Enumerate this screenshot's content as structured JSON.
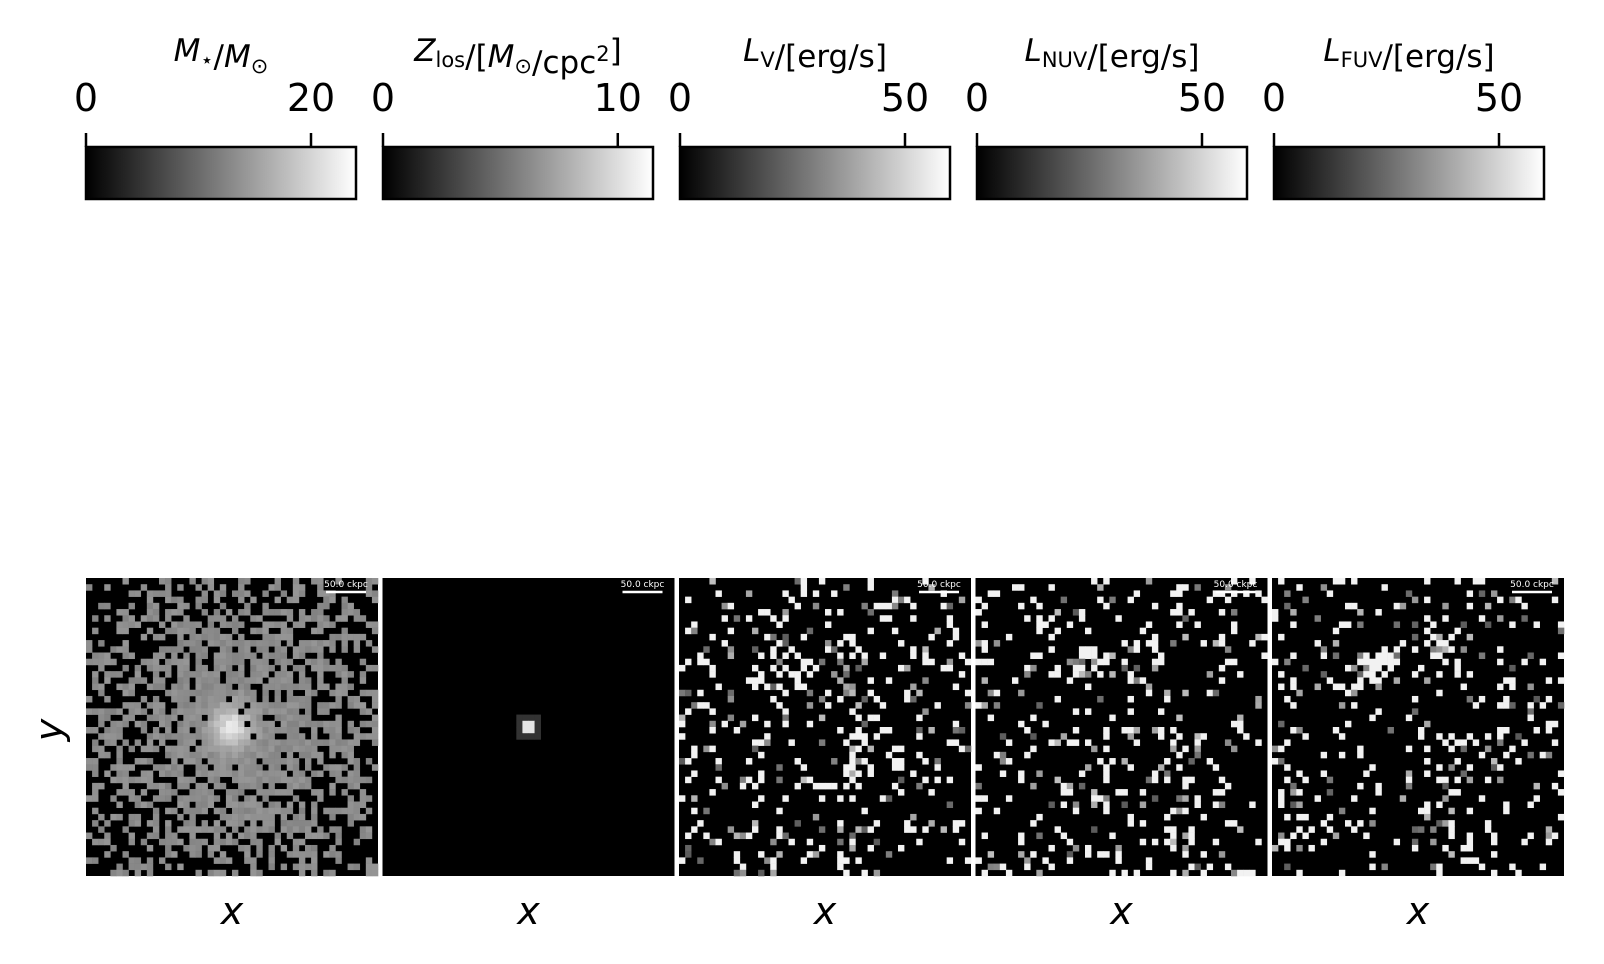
{
  "colors": {
    "cmap_low": "#000000",
    "cmap_high": "#ffffff",
    "frame": "#000000",
    "scalebar": "#ffffff"
  },
  "chart_data": [
    {
      "type": "heatmap",
      "title_parts": [
        [
          "M",
          "it"
        ],
        [
          "⋆",
          "sub"
        ],
        [
          "/",
          ""
        ],
        [
          "M",
          "it"
        ],
        [
          "⊙",
          "sub"
        ]
      ],
      "colorbar": {
        "range": [
          0,
          24
        ],
        "ticks": [
          0,
          20
        ],
        "tick_labels": [
          "0",
          "20"
        ],
        "orientation": "horizontal",
        "position": "top"
      },
      "xlabel": "x",
      "ylabel": "y",
      "scalebar_label": "50.0 ckpc",
      "grid": false,
      "pattern": "central-concentration"
    },
    {
      "type": "heatmap",
      "title_parts": [
        [
          "Z",
          "it"
        ],
        [
          "los",
          "sub"
        ],
        [
          "/[",
          ""
        ],
        [
          "M",
          "it"
        ],
        [
          "⊙",
          "sub"
        ],
        [
          "/cpc",
          ""
        ],
        [
          "2",
          "sup"
        ],
        [
          "]",
          ""
        ]
      ],
      "colorbar": {
        "range": [
          0,
          11.5
        ],
        "ticks": [
          0,
          10
        ],
        "tick_labels": [
          "0",
          "10"
        ],
        "orientation": "horizontal",
        "position": "top"
      },
      "xlabel": "x",
      "ylabel": "",
      "scalebar_label": "50.0 ckpc",
      "grid": false,
      "pattern": "single-bright-pixel"
    },
    {
      "type": "heatmap",
      "title_parts": [
        [
          "L",
          "it"
        ],
        [
          "V",
          "sub"
        ],
        [
          "/[erg/s]",
          ""
        ]
      ],
      "colorbar": {
        "range": [
          0,
          60
        ],
        "ticks": [
          0,
          50
        ],
        "tick_labels": [
          "0",
          "50"
        ],
        "orientation": "horizontal",
        "position": "top"
      },
      "xlabel": "x",
      "ylabel": "",
      "scalebar_label": "50.0 ckpc",
      "grid": false,
      "pattern": "sparse-clumps"
    },
    {
      "type": "heatmap",
      "title_parts": [
        [
          "L",
          "it"
        ],
        [
          "NUV",
          "sub"
        ],
        [
          "/[erg/s]",
          ""
        ]
      ],
      "colorbar": {
        "range": [
          0,
          60
        ],
        "ticks": [
          0,
          50
        ],
        "tick_labels": [
          "0",
          "50"
        ],
        "orientation": "horizontal",
        "position": "top"
      },
      "xlabel": "x",
      "ylabel": "",
      "scalebar_label": "50.0 ckpc",
      "grid": false,
      "pattern": "sparse-clumps"
    },
    {
      "type": "heatmap",
      "title_parts": [
        [
          "L",
          "it"
        ],
        [
          "FUV",
          "sub"
        ],
        [
          "/[erg/s]",
          ""
        ]
      ],
      "colorbar": {
        "range": [
          0,
          60
        ],
        "ticks": [
          0,
          50
        ],
        "tick_labels": [
          "0",
          "50"
        ],
        "orientation": "horizontal",
        "position": "top"
      },
      "xlabel": "x",
      "ylabel": "",
      "scalebar_label": "50.0 ckpc",
      "grid": false,
      "pattern": "sparse-clumps"
    }
  ]
}
